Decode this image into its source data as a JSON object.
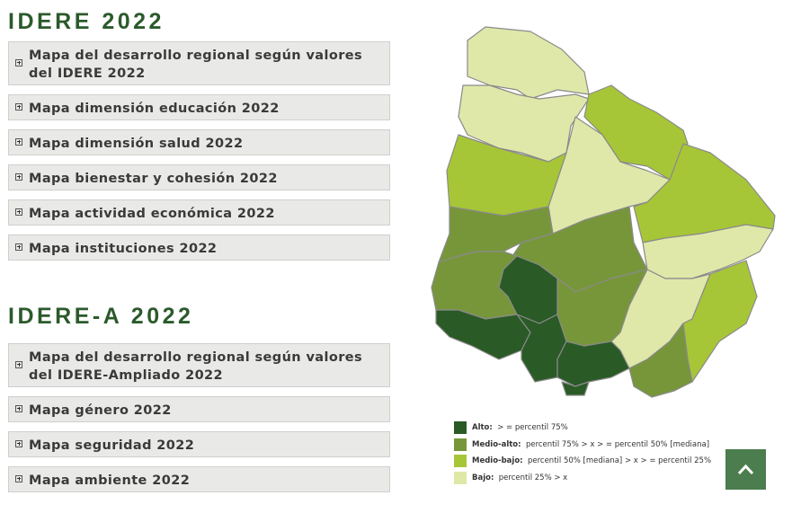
{
  "sections": [
    {
      "title": "IDERE 2022",
      "items": [
        "Mapa del desarrollo regional según valores del IDERE 2022",
        "Mapa dimensión educación 2022",
        "Mapa dimensión salud 2022",
        "Mapa bienestar y cohesión 2022",
        "Mapa actividad económica 2022",
        "Mapa instituciones 2022"
      ]
    },
    {
      "title": "IDERE-A 2022",
      "items": [
        "Mapa del desarrollo regional según valores del IDERE-Ampliado 2022",
        "Mapa género 2022",
        "Mapa seguridad 2022",
        "Mapa ambiente 2022"
      ]
    }
  ],
  "legend": {
    "items": [
      {
        "label": "Alto:",
        "desc": "> = percentil 75%"
      },
      {
        "label": "Medio-alto:",
        "desc": "percentil 75% > x > = percentil 50% [mediana]"
      },
      {
        "label": "Medio-bajo:",
        "desc": "percentil 50% [mediana] > x > = percentil 25%"
      },
      {
        "label": "Bajo:",
        "desc": "percentil 25% > x"
      }
    ]
  }
}
